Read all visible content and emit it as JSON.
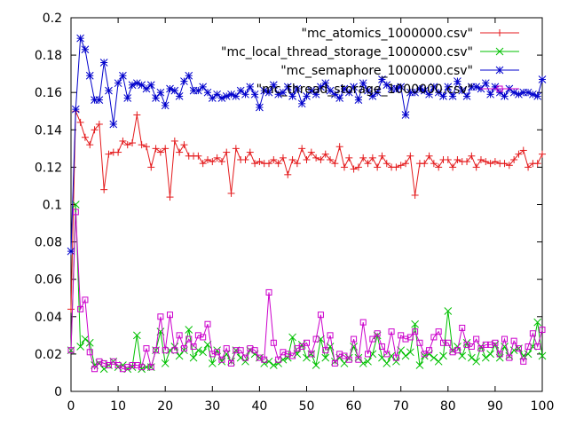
{
  "chart_data": {
    "type": "line",
    "title": "",
    "xlabel": "",
    "ylabel": "",
    "xlim": [
      0,
      100
    ],
    "ylim": [
      0,
      0.2
    ],
    "xticks": [
      "0",
      "10",
      "20",
      "30",
      "40",
      "50",
      "60",
      "70",
      "80",
      "90",
      "100"
    ],
    "yticks": [
      "0",
      "0.02",
      "0.04",
      "0.06",
      "0.08",
      "0.1",
      "0.12",
      "0.14",
      "0.16",
      "0.18",
      "0.2"
    ],
    "grid": false,
    "legend_position": "top-right",
    "x": [
      0,
      1,
      2,
      3,
      4,
      5,
      6,
      7,
      8,
      9,
      10,
      11,
      12,
      13,
      14,
      15,
      16,
      17,
      18,
      19,
      20,
      21,
      22,
      23,
      24,
      25,
      26,
      27,
      28,
      29,
      30,
      31,
      32,
      33,
      34,
      35,
      36,
      37,
      38,
      39,
      40,
      41,
      42,
      43,
      44,
      45,
      46,
      47,
      48,
      49,
      50,
      51,
      52,
      53,
      54,
      55,
      56,
      57,
      58,
      59,
      60,
      61,
      62,
      63,
      64,
      65,
      66,
      67,
      68,
      69,
      70,
      71,
      72,
      73,
      74,
      75,
      76,
      77,
      78,
      79,
      80,
      81,
      82,
      83,
      84,
      85,
      86,
      87,
      88,
      89,
      90,
      91,
      92,
      93,
      94,
      95,
      96,
      97,
      98,
      99,
      100
    ],
    "series": [
      {
        "name": "\"mc_atomics_1000000.csv\"",
        "color": "#e41a1c",
        "marker": "plus",
        "values": [
          0.044,
          0.15,
          0.144,
          0.136,
          0.132,
          0.14,
          0.143,
          0.108,
          0.127,
          0.128,
          0.128,
          0.134,
          0.132,
          0.133,
          0.148,
          0.132,
          0.131,
          0.12,
          0.13,
          0.128,
          0.13,
          0.104,
          0.134,
          0.128,
          0.132,
          0.126,
          0.126,
          0.126,
          0.122,
          0.124,
          0.123,
          0.125,
          0.123,
          0.128,
          0.106,
          0.13,
          0.124,
          0.124,
          0.128,
          0.122,
          0.123,
          0.122,
          0.122,
          0.124,
          0.122,
          0.125,
          0.116,
          0.124,
          0.122,
          0.13,
          0.124,
          0.128,
          0.125,
          0.124,
          0.127,
          0.124,
          0.122,
          0.131,
          0.12,
          0.125,
          0.119,
          0.12,
          0.125,
          0.122,
          0.125,
          0.12,
          0.126,
          0.122,
          0.12,
          0.12,
          0.121,
          0.122,
          0.126,
          0.105,
          0.122,
          0.122,
          0.126,
          0.122,
          0.12,
          0.124,
          0.124,
          0.12,
          0.124,
          0.123,
          0.123,
          0.126,
          0.12,
          0.124,
          0.123,
          0.122,
          0.123,
          0.122,
          0.122,
          0.121,
          0.124,
          0.127,
          0.129,
          0.12,
          0.122,
          0.122,
          0.127
        ]
      },
      {
        "name": "\"mc_local_thread_storage_1000000.csv\"",
        "color": "#00c000",
        "marker": "cross",
        "values": [
          0.022,
          0.1,
          0.024,
          0.028,
          0.026,
          0.014,
          0.015,
          0.012,
          0.014,
          0.016,
          0.013,
          0.014,
          0.012,
          0.013,
          0.03,
          0.012,
          0.013,
          0.013,
          0.022,
          0.032,
          0.015,
          0.022,
          0.024,
          0.019,
          0.022,
          0.033,
          0.018,
          0.022,
          0.021,
          0.025,
          0.015,
          0.022,
          0.016,
          0.02,
          0.016,
          0.022,
          0.018,
          0.016,
          0.022,
          0.02,
          0.018,
          0.015,
          0.016,
          0.014,
          0.015,
          0.017,
          0.018,
          0.029,
          0.02,
          0.025,
          0.018,
          0.02,
          0.014,
          0.028,
          0.018,
          0.024,
          0.016,
          0.018,
          0.015,
          0.018,
          0.024,
          0.018,
          0.015,
          0.016,
          0.02,
          0.03,
          0.018,
          0.015,
          0.019,
          0.016,
          0.022,
          0.019,
          0.021,
          0.036,
          0.014,
          0.019,
          0.02,
          0.018,
          0.016,
          0.019,
          0.043,
          0.022,
          0.024,
          0.019,
          0.026,
          0.018,
          0.016,
          0.024,
          0.018,
          0.02,
          0.025,
          0.018,
          0.024,
          0.019,
          0.022,
          0.023,
          0.019,
          0.02,
          0.024,
          0.037,
          0.019
        ]
      },
      {
        "name": "\"mc_semaphore_1000000.csv\"",
        "color": "#0000cc",
        "marker": "star",
        "values": [
          0.075,
          0.151,
          0.189,
          0.183,
          0.169,
          0.156,
          0.156,
          0.176,
          0.161,
          0.143,
          0.165,
          0.169,
          0.157,
          0.164,
          0.165,
          0.164,
          0.162,
          0.164,
          0.157,
          0.16,
          0.153,
          0.162,
          0.161,
          0.158,
          0.166,
          0.169,
          0.161,
          0.161,
          0.163,
          0.16,
          0.157,
          0.159,
          0.157,
          0.158,
          0.159,
          0.158,
          0.161,
          0.159,
          0.163,
          0.159,
          0.152,
          0.161,
          0.16,
          0.164,
          0.159,
          0.16,
          0.163,
          0.158,
          0.162,
          0.154,
          0.158,
          0.161,
          0.159,
          0.163,
          0.165,
          0.161,
          0.159,
          0.157,
          0.162,
          0.16,
          0.163,
          0.156,
          0.165,
          0.161,
          0.158,
          0.16,
          0.167,
          0.164,
          0.162,
          0.162,
          0.163,
          0.148,
          0.16,
          0.16,
          0.162,
          0.161,
          0.159,
          0.163,
          0.16,
          0.158,
          0.163,
          0.158,
          0.166,
          0.161,
          0.158,
          0.163,
          0.163,
          0.162,
          0.165,
          0.159,
          0.163,
          0.16,
          0.158,
          0.162,
          0.16,
          0.159,
          0.16,
          0.16,
          0.159,
          0.158,
          0.167
        ]
      },
      {
        "name": "\"mc_thread_storage_1000000.csv\"",
        "color": "#cc00cc",
        "marker": "box",
        "values": [
          0.022,
          0.096,
          0.044,
          0.049,
          0.021,
          0.012,
          0.016,
          0.015,
          0.014,
          0.016,
          0.014,
          0.012,
          0.013,
          0.014,
          0.014,
          0.013,
          0.023,
          0.013,
          0.022,
          0.04,
          0.022,
          0.041,
          0.022,
          0.03,
          0.023,
          0.028,
          0.024,
          0.03,
          0.029,
          0.036,
          0.02,
          0.021,
          0.017,
          0.023,
          0.015,
          0.022,
          0.022,
          0.018,
          0.023,
          0.022,
          0.018,
          0.017,
          0.053,
          0.026,
          0.017,
          0.021,
          0.02,
          0.019,
          0.023,
          0.024,
          0.026,
          0.02,
          0.028,
          0.041,
          0.022,
          0.03,
          0.015,
          0.02,
          0.019,
          0.017,
          0.028,
          0.017,
          0.037,
          0.02,
          0.028,
          0.031,
          0.024,
          0.02,
          0.032,
          0.018,
          0.03,
          0.028,
          0.029,
          0.032,
          0.026,
          0.02,
          0.022,
          0.029,
          0.032,
          0.026,
          0.026,
          0.021,
          0.022,
          0.034,
          0.025,
          0.024,
          0.028,
          0.023,
          0.025,
          0.025,
          0.026,
          0.02,
          0.028,
          0.018,
          0.027,
          0.023,
          0.016,
          0.024,
          0.031,
          0.024,
          0.033
        ]
      }
    ]
  }
}
